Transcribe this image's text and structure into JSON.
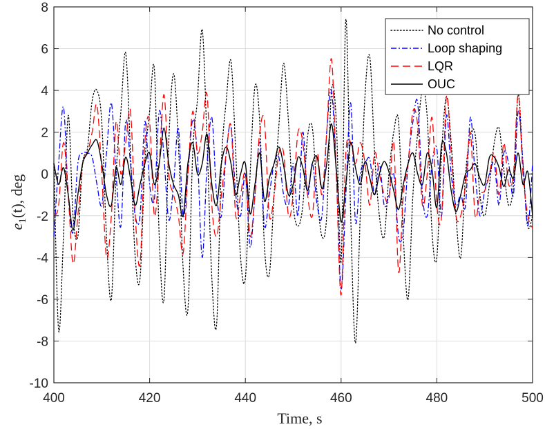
{
  "chart_data": {
    "type": "line",
    "title": "",
    "xlabel": "Time, s",
    "ylabel": "e_1(t), deg",
    "ylabel_main": "e",
    "ylabel_sub": "1",
    "ylabel_rest": "(t), deg",
    "xlim": [
      400,
      500
    ],
    "ylim": [
      -10,
      8
    ],
    "xticks": [
      400,
      420,
      440,
      460,
      480,
      500
    ],
    "yticks": [
      -10,
      -8,
      -6,
      -4,
      -2,
      0,
      2,
      4,
      6,
      8
    ],
    "xtick_labels": [
      "400",
      "420",
      "440",
      "460",
      "480",
      "500"
    ],
    "ytick_labels": [
      "-10",
      "-8",
      "-6",
      "-4",
      "-2",
      "0",
      "2",
      "4",
      "6",
      "8"
    ],
    "grid": true,
    "legend_position": "top-right",
    "series": [
      {
        "name": "No control",
        "color": "#000000",
        "dash": "dotted",
        "x": [
          400,
          401,
          402,
          403,
          404,
          405,
          406,
          407,
          408,
          409,
          410,
          411,
          412,
          413,
          414,
          415,
          416,
          417,
          418,
          419,
          420,
          421,
          422,
          423,
          424,
          425,
          426,
          427,
          428,
          429,
          430,
          431,
          432,
          433,
          434,
          435,
          436,
          437,
          438,
          439,
          440,
          441,
          442,
          443,
          444,
          445,
          446,
          447,
          448,
          449,
          450,
          451,
          452,
          453,
          454,
          455,
          456,
          457,
          458,
          459,
          460,
          461,
          462,
          463,
          464,
          465,
          466,
          467,
          468,
          469,
          470,
          471,
          472,
          473,
          474,
          475,
          476,
          477,
          478,
          479,
          480,
          481,
          482,
          483,
          484,
          485,
          486,
          487,
          488,
          489,
          490,
          491,
          492,
          493,
          494,
          495,
          496,
          497,
          498,
          499,
          500
        ],
        "values": [
          0.5,
          -7.5,
          -3,
          2.8,
          -2,
          -3,
          0.5,
          1.2,
          3.5,
          4,
          2.5,
          -3,
          -6,
          0,
          3,
          5.8,
          1,
          -4,
          -5,
          0.5,
          3,
          5,
          -3,
          -6,
          1.5,
          4.8,
          1.5,
          -4.5,
          -6.5,
          1,
          3.6,
          6.9,
          1.5,
          -5,
          -7.2,
          0.5,
          3.5,
          5.4,
          1,
          -4,
          -5,
          0,
          4.2,
          2.5,
          -3.5,
          -4.8,
          -1,
          2.3,
          5.3,
          2.5,
          -1.5,
          -2.5,
          -1.5,
          1.8,
          2.2,
          -1,
          -3,
          -2,
          4,
          2.5,
          -4.2,
          7.4,
          -2,
          -8.1,
          -2,
          3.8,
          5.6,
          1,
          -2,
          -3,
          0,
          2,
          2.5,
          -3,
          -6,
          -1,
          2,
          4,
          2.7,
          -2.8,
          -4,
          1,
          3.7,
          1.5,
          -2,
          -4,
          0,
          1.8,
          1.9,
          -1,
          -2,
          -0.5,
          1.5,
          2.2,
          0.2,
          -1.5,
          -0.5,
          3.8,
          0.5,
          -2.5,
          -2
        ]
      },
      {
        "name": "Loop shaping",
        "color": "#0000ff",
        "dash": "dashdot",
        "x": [
          400,
          401,
          402,
          403,
          404,
          405,
          406,
          407,
          408,
          409,
          410,
          411,
          412,
          413,
          414,
          415,
          416,
          417,
          418,
          419,
          420,
          421,
          422,
          423,
          424,
          425,
          426,
          427,
          428,
          429,
          430,
          431,
          432,
          433,
          434,
          435,
          436,
          437,
          438,
          439,
          440,
          441,
          442,
          443,
          444,
          445,
          446,
          447,
          448,
          449,
          450,
          451,
          452,
          453,
          454,
          455,
          456,
          457,
          458,
          459,
          460,
          461,
          462,
          463,
          464,
          465,
          466,
          467,
          468,
          469,
          470,
          471,
          472,
          473,
          474,
          475,
          476,
          477,
          478,
          479,
          480,
          481,
          482,
          483,
          484,
          485,
          486,
          487,
          488,
          489,
          490,
          491,
          492,
          493,
          494,
          495,
          496,
          497,
          498,
          499,
          500
        ],
        "values": [
          -3,
          0.5,
          3.2,
          -1,
          -2.8,
          0.5,
          1,
          1,
          0.8,
          -0.5,
          -1.5,
          1,
          3.4,
          0,
          -2.5,
          2.5,
          0.5,
          -2,
          -2,
          2.5,
          -0.5,
          -1.2,
          3,
          0.8,
          -2.2,
          -0.5,
          2.2,
          -2,
          0,
          2.6,
          0.8,
          -4,
          0.5,
          2.7,
          -1,
          -2,
          1,
          2.3,
          -1,
          -2,
          0,
          -3.5,
          -1,
          1.5,
          -2.5,
          -1,
          0.5,
          0.8,
          -1,
          -1.5,
          0.5,
          -2,
          2,
          -1,
          0.5,
          -1.5,
          -2,
          2,
          4,
          0,
          -5.5,
          -1,
          3.4,
          -2.3,
          0,
          0.5,
          0.7,
          -1,
          0.5,
          -1.5,
          -1,
          0,
          -3,
          -2.7,
          0.5,
          2.5,
          3.4,
          -1,
          -2,
          0.5,
          1.2,
          -2,
          2.8,
          0,
          -1.5,
          -1,
          -1.5,
          2.7,
          0,
          -2,
          -0.8,
          0,
          0.5,
          -1.5,
          1,
          0.5,
          -1,
          3,
          0.5,
          -2.5,
          0.5
        ]
      },
      {
        "name": "LQR",
        "color": "#ff0000",
        "dash": "dashed",
        "x": [
          400,
          401,
          402,
          403,
          404,
          405,
          406,
          407,
          408,
          409,
          410,
          411,
          412,
          413,
          414,
          415,
          416,
          417,
          418,
          419,
          420,
          421,
          422,
          423,
          424,
          425,
          426,
          427,
          428,
          429,
          430,
          431,
          432,
          433,
          434,
          435,
          436,
          437,
          438,
          439,
          440,
          441,
          442,
          443,
          444,
          445,
          446,
          447,
          448,
          449,
          450,
          451,
          452,
          453,
          454,
          455,
          456,
          457,
          458,
          459,
          460,
          461,
          462,
          463,
          464,
          465,
          466,
          467,
          468,
          469,
          470,
          471,
          472,
          473,
          474,
          475,
          476,
          477,
          478,
          479,
          480,
          481,
          482,
          483,
          484,
          485,
          486,
          487,
          488,
          489,
          490,
          491,
          492,
          493,
          494,
          495,
          496,
          497,
          498,
          499,
          500
        ],
        "values": [
          -2,
          -1.5,
          1.5,
          -1,
          -4.3,
          -2,
          0.5,
          1,
          2,
          3.3,
          0,
          -4,
          -2,
          2.5,
          0,
          1.5,
          3,
          -2,
          -4.3,
          1.5,
          2.5,
          -2,
          0.5,
          3.8,
          0,
          -1,
          -2,
          -3.8,
          0,
          3,
          1,
          2,
          3.8,
          -1.5,
          -3,
          -1,
          1,
          2.3,
          -2,
          -1,
          0,
          -3,
          -1,
          2,
          2.5,
          -2,
          -1,
          1,
          1,
          -2,
          -1,
          2,
          1.5,
          -1,
          -2,
          1,
          -1,
          2,
          5.5,
          0,
          -5.8,
          1,
          1.5,
          0.5,
          1.5,
          0.5,
          -1.5,
          1,
          0,
          -1,
          -1.2,
          1.5,
          -4.7,
          -1,
          0.5,
          3,
          2.3,
          -1.5,
          0,
          2.7,
          -1.5,
          -2,
          3.7,
          1,
          -2,
          -2,
          -0.5,
          2,
          -2,
          -1,
          -0.8,
          0,
          1,
          -1,
          1.5,
          -0.5,
          0,
          3.8,
          0,
          -2,
          -2.6
        ]
      },
      {
        "name": "OUC",
        "color": "#000000",
        "dash": "solid",
        "x": [
          400,
          401,
          402,
          403,
          404,
          405,
          406,
          407,
          408,
          409,
          410,
          411,
          412,
          413,
          414,
          415,
          416,
          417,
          418,
          419,
          420,
          421,
          422,
          423,
          424,
          425,
          426,
          427,
          428,
          429,
          430,
          431,
          432,
          433,
          434,
          435,
          436,
          437,
          438,
          439,
          440,
          441,
          442,
          443,
          444,
          445,
          446,
          447,
          448,
          449,
          450,
          451,
          452,
          453,
          454,
          455,
          456,
          457,
          458,
          459,
          460,
          461,
          462,
          463,
          464,
          465,
          466,
          467,
          468,
          469,
          470,
          471,
          472,
          473,
          474,
          475,
          476,
          477,
          478,
          479,
          480,
          481,
          482,
          483,
          484,
          485,
          486,
          487,
          488,
          489,
          490,
          491,
          492,
          493,
          494,
          495,
          496,
          497,
          498,
          499,
          500
        ],
        "values": [
          0.5,
          -0.5,
          0.3,
          -1,
          -2.7,
          -1,
          0.5,
          1,
          1.4,
          1.6,
          0.5,
          -1,
          -1.5,
          0.3,
          -0.5,
          0.8,
          -0.2,
          -1.5,
          -0.5,
          0.5,
          1,
          -0.5,
          0.5,
          2.2,
          0.5,
          -0.5,
          -1,
          -2,
          0.5,
          1.5,
          0,
          0.5,
          1.9,
          -0.5,
          -1.5,
          0.5,
          1.3,
          0.5,
          -1,
          0,
          0.5,
          -1.9,
          -0.5,
          1,
          -1.3,
          -0.2,
          0.5,
          1.3,
          0.4,
          -1,
          -0.5,
          0.8,
          0.3,
          -0.8,
          0.5,
          0.8,
          -0.7,
          0.5,
          2.4,
          0.2,
          -2.3,
          -0.5,
          1.5,
          0.3,
          -0.5,
          0.6,
          -0.2,
          -1,
          0,
          0.6,
          0.1,
          -0.8,
          -1.7,
          -0.5,
          0.5,
          1,
          0,
          -0.5,
          1,
          0.2,
          -1.6,
          1.4,
          1,
          -0.8,
          -1.8,
          -1,
          0,
          0.2,
          0.5,
          -0.2,
          -0.5,
          0.8,
          0.8,
          0.3,
          -0.6,
          0.2,
          -0.2,
          1,
          -0.5,
          0.1,
          -2
        ]
      }
    ]
  }
}
